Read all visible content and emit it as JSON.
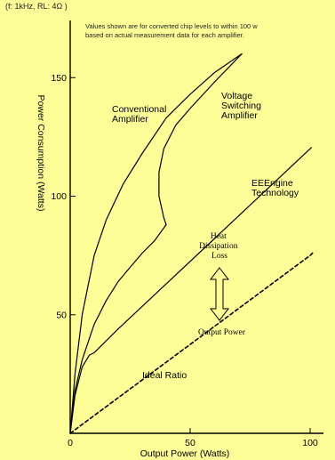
{
  "chart_data": {
    "type": "line",
    "conditions": "(f: 1kHz, RL: 4Ω )",
    "note": [
      "Values shown are for converted chip levels to within 100 w",
      "based on actual measurement data for each amplifier."
    ],
    "xlabel": "Output Power (Watts)",
    "ylabel": "Power Consumption (Watts)",
    "xlim": [
      0,
      100
    ],
    "ylim": [
      0,
      170
    ],
    "x_ticks": [
      0,
      50,
      100
    ],
    "y_ticks": [
      50,
      100,
      150
    ],
    "grid": false,
    "series": [
      {
        "name": "Conventional Amplifier",
        "label_lines": [
          "Conventional",
          "Amplifier"
        ],
        "style": "solid",
        "points": [
          [
            0,
            0
          ],
          [
            2,
            25
          ],
          [
            5,
            50
          ],
          [
            10,
            75
          ],
          [
            15,
            90
          ],
          [
            22,
            105
          ],
          [
            30,
            118
          ],
          [
            40,
            133
          ],
          [
            50,
            143
          ],
          [
            60,
            152
          ],
          [
            70,
            159
          ],
          [
            71.5,
            160
          ]
        ]
      },
      {
        "name": "Voltage Switching Amplifier",
        "label_lines": [
          "Voltage",
          "Switching",
          "Amplifier"
        ],
        "style": "solid",
        "points": [
          [
            0,
            0
          ],
          [
            2,
            18
          ],
          [
            5,
            31
          ],
          [
            10,
            46
          ],
          [
            15,
            56
          ],
          [
            20,
            64
          ],
          [
            25,
            70
          ],
          [
            30,
            76
          ],
          [
            35,
            81
          ],
          [
            40,
            88
          ],
          [
            39,
            91
          ],
          [
            37,
            100
          ],
          [
            37,
            110
          ],
          [
            39,
            120
          ],
          [
            44,
            130
          ],
          [
            50,
            137
          ],
          [
            60,
            148
          ],
          [
            71.5,
            160
          ]
        ]
      },
      {
        "name": "EEEngine Technology",
        "label_lines": [
          "EEEngine",
          "Technology"
        ],
        "style": "solid",
        "points": [
          [
            0,
            0
          ],
          [
            2,
            16
          ],
          [
            5,
            28
          ],
          [
            8,
            33
          ],
          [
            10,
            34
          ],
          [
            20,
            44
          ],
          [
            40,
            63
          ],
          [
            60,
            82
          ],
          [
            80,
            101
          ],
          [
            100,
            120
          ],
          [
            100.5,
            120.5
          ]
        ]
      },
      {
        "name": "Ideal Ratio",
        "label_lines": [
          "Ideal Ratio"
        ],
        "style": "dashed",
        "points": [
          [
            0,
            0
          ],
          [
            50,
            37.5
          ],
          [
            100,
            75
          ],
          [
            101,
            76
          ]
        ]
      }
    ],
    "annotations": {
      "heat_dissipation": [
        "Heat",
        "Dissipation",
        "Loss"
      ],
      "output_power": "Output Power"
    }
  }
}
